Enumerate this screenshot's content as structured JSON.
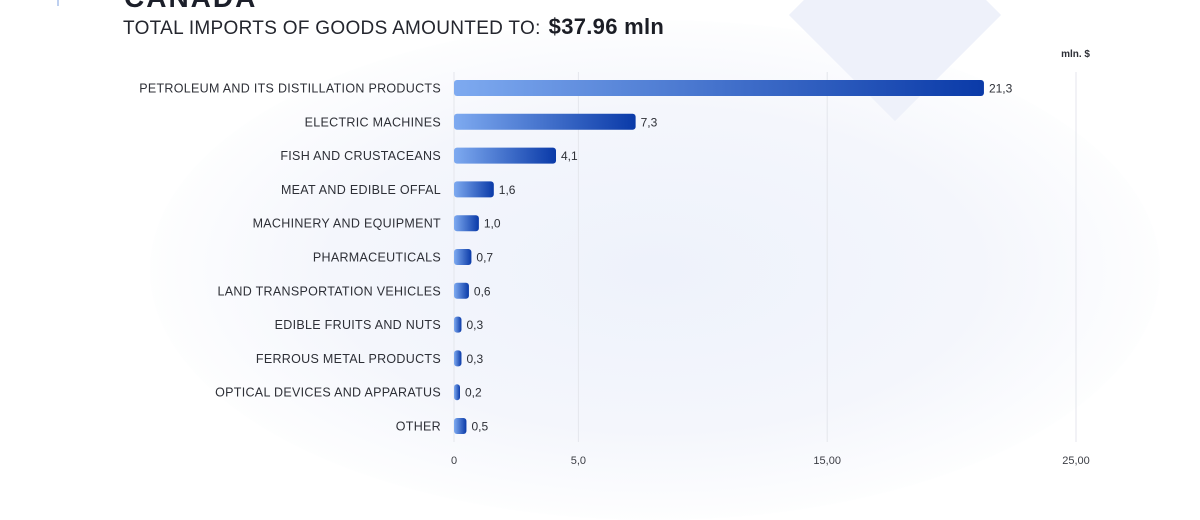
{
  "header": {
    "country": "CANADA",
    "subtitle_prefix": "TOTAL IMPORTS OF GOODS AMOUNTED TO:",
    "total_amount": "$37.96  mln"
  },
  "colors": {
    "bar_dark": "#0a3aa8",
    "bar_light": "#7eaaf0",
    "grid": "#e4e6ec",
    "text": "#2d2f36"
  },
  "chart_data": {
    "type": "bar",
    "orientation": "horizontal",
    "unit": "mln. $",
    "categories": [
      "PETROLEUM AND ITS DISTILLATION PRODUCTS",
      "ELECTRIC MACHINES",
      "FISH AND CRUSTACEANS",
      "MEAT AND EDIBLE OFFAL",
      "MACHINERY AND EQUIPMENT",
      "PHARMACEUTICALS",
      "LAND TRANSPORTATION VEHICLES",
      "EDIBLE FRUITS AND NUTS",
      "FERROUS METAL PRODUCTS",
      "OPTICAL DEVICES AND APPARATUS",
      "OTHER"
    ],
    "values": [
      21.3,
      7.3,
      4.1,
      1.6,
      1.0,
      0.7,
      0.6,
      0.3,
      0.3,
      0.2,
      0.5
    ],
    "value_labels": [
      "21,3",
      "7,3",
      "4,1",
      "1,6",
      "1,0",
      "0,7",
      "0,6",
      "0,3",
      "0,3",
      "0,2",
      "0,5"
    ],
    "x_ticks": [
      {
        "value": 0,
        "label": "0"
      },
      {
        "value": 5,
        "label": "5,0"
      },
      {
        "value": 15,
        "label": "15,00"
      },
      {
        "value": 25,
        "label": "25,00"
      }
    ],
    "xlim": [
      0,
      25
    ],
    "grid": true
  }
}
